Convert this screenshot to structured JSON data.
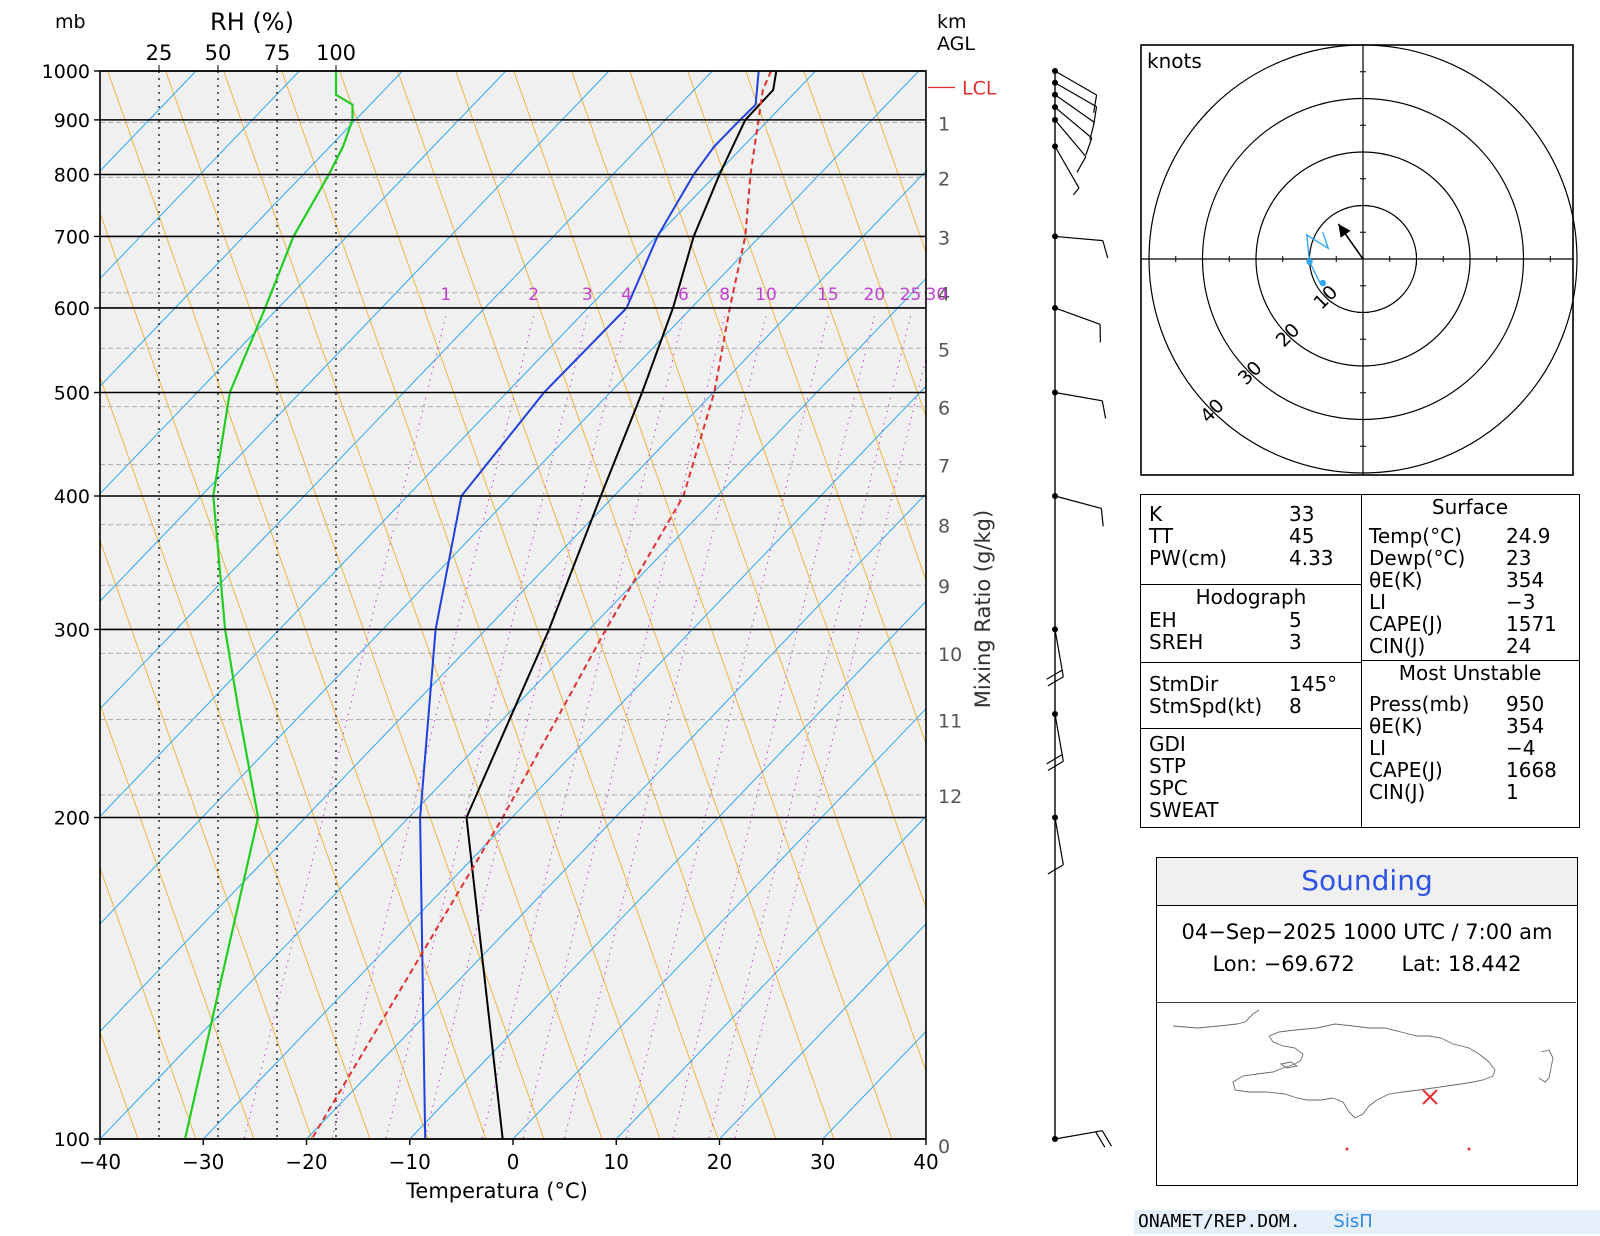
{
  "chart_data": {
    "type": "skew-t",
    "xlabel": "Temperatura (°C)",
    "left_unit": "mb",
    "rh_label": "RH (%)",
    "rh_ticks": [
      "25",
      "50",
      "75",
      "100"
    ],
    "right_unit_top": "km",
    "right_unit_bottom": "AGL",
    "mixing_ratio_label": "Mixing Ratio (g/kg)",
    "pressure_levels": [
      100,
      200,
      300,
      400,
      500,
      600,
      700,
      800,
      900,
      1000
    ],
    "pressure_labels": [
      "100",
      "200",
      "300",
      "400",
      "500",
      "600",
      "700",
      "800",
      "900",
      "1000"
    ],
    "temperature_ticks": [
      -40,
      -30,
      -20,
      -10,
      0,
      10,
      20,
      30,
      40
    ],
    "temperature_tick_labels": [
      "−40",
      "−30",
      "−20",
      "−10",
      "0",
      "10",
      "20",
      "30",
      "40"
    ],
    "xlim": [
      -40,
      40
    ],
    "ylim": [
      1000,
      100
    ],
    "height_km": [
      {
        "km": 0,
        "label": "0",
        "p": 1000
      },
      {
        "km": 1,
        "label": "1",
        "p": 895
      },
      {
        "km": 2,
        "label": "2",
        "p": 795
      },
      {
        "km": 3,
        "label": "3",
        "p": 700
      },
      {
        "km": 4,
        "label": "4",
        "p": 620
      },
      {
        "km": 5,
        "label": "5",
        "p": 550
      },
      {
        "km": 6,
        "label": "6",
        "p": 485
      },
      {
        "km": 7,
        "label": "7",
        "p": 428
      },
      {
        "km": 8,
        "label": "8",
        "p": 376
      },
      {
        "km": 9,
        "label": "9",
        "p": 330
      },
      {
        "km": 10,
        "label": "10",
        "p": 285
      },
      {
        "km": 11,
        "label": "11",
        "p": 247
      },
      {
        "km": 12,
        "label": "12",
        "p": 210
      }
    ],
    "lcl": {
      "label": "LCL",
      "p": 965
    },
    "mixing_ratio_lines": [
      {
        "label": "1",
        "x_at_600": -6.5
      },
      {
        "label": "2",
        "x_at_600": 2.0
      },
      {
        "label": "3",
        "x_at_600": 7.2
      },
      {
        "label": "4",
        "x_at_600": 11.0
      },
      {
        "label": "6",
        "x_at_600": 16.5
      },
      {
        "label": "8",
        "x_at_600": 20.5
      },
      {
        "label": "10",
        "x_at_600": 24.5
      },
      {
        "label": "15",
        "x_at_600": 30.5
      },
      {
        "label": "20",
        "x_at_600": 35.0
      },
      {
        "label": "25",
        "x_at_600": 38.5
      },
      {
        "label": "30",
        "x_at_600": 41.0
      }
    ],
    "series": [
      {
        "name": "Temperature",
        "color": "#000000",
        "points": [
          {
            "p": 1000,
            "x": 25.5
          },
          {
            "p": 960,
            "x": 25.2
          },
          {
            "p": 900,
            "x": 22.5
          },
          {
            "p": 800,
            "x": 20.0
          },
          {
            "p": 700,
            "x": 17.5
          },
          {
            "p": 600,
            "x": 15.5
          },
          {
            "p": 500,
            "x": 12.5
          },
          {
            "p": 400,
            "x": 8.5
          },
          {
            "p": 300,
            "x": 3.5
          },
          {
            "p": 200,
            "x": -4.5
          },
          {
            "p": 100,
            "x": -1.0
          }
        ]
      },
      {
        "name": "Dewpoint",
        "color": "#2040e0",
        "points": [
          {
            "p": 1000,
            "x": 23.8
          },
          {
            "p": 930,
            "x": 23.5
          },
          {
            "p": 900,
            "x": 22.0
          },
          {
            "p": 850,
            "x": 19.5
          },
          {
            "p": 800,
            "x": 17.5
          },
          {
            "p": 700,
            "x": 14.0
          },
          {
            "p": 600,
            "x": 11.0
          },
          {
            "p": 500,
            "x": 3.0
          },
          {
            "p": 400,
            "x": -5.0
          },
          {
            "p": 300,
            "x": -7.5
          },
          {
            "p": 200,
            "x": -9.0
          },
          {
            "p": 100,
            "x": -8.5
          }
        ]
      },
      {
        "name": "Parcel",
        "color": "#e03030",
        "dashed": true,
        "points": [
          {
            "p": 1000,
            "x": 25.0
          },
          {
            "p": 960,
            "x": 24.2
          },
          {
            "p": 800,
            "x": 23.0
          },
          {
            "p": 700,
            "x": 22.5
          },
          {
            "p": 600,
            "x": 21.0
          },
          {
            "p": 500,
            "x": 19.5
          },
          {
            "p": 400,
            "x": 16.5
          },
          {
            "p": 300,
            "x": 9.0
          },
          {
            "p": 200,
            "x": -1.0
          },
          {
            "p": 100,
            "x": -19.5
          }
        ]
      },
      {
        "name": "RH",
        "color": "#22cc22",
        "points": [
          {
            "p": 1000,
            "rh": 100
          },
          {
            "p": 950,
            "rh": 100
          },
          {
            "p": 930,
            "rh": 107
          },
          {
            "p": 900,
            "rh": 107
          },
          {
            "p": 850,
            "rh": 103
          },
          {
            "p": 800,
            "rh": 97
          },
          {
            "p": 700,
            "rh": 82
          },
          {
            "p": 600,
            "rh": 70
          },
          {
            "p": 500,
            "rh": 55
          },
          {
            "p": 400,
            "rh": 48
          },
          {
            "p": 300,
            "rh": 53
          },
          {
            "p": 250,
            "rh": 59
          },
          {
            "p": 200,
            "rh": 67
          },
          {
            "p": 100,
            "rh": 36
          }
        ]
      }
    ],
    "wind_profile": [
      {
        "p": 1000,
        "dir": 120,
        "spd": 10
      },
      {
        "p": 975,
        "dir": 120,
        "spd": 10
      },
      {
        "p": 950,
        "dir": 125,
        "spd": 10
      },
      {
        "p": 925,
        "dir": 130,
        "spd": 10
      },
      {
        "p": 900,
        "dir": 140,
        "spd": 10
      },
      {
        "p": 850,
        "dir": 150,
        "spd": 5
      },
      {
        "p": 700,
        "dir": 95,
        "spd": 10
      },
      {
        "p": 600,
        "dir": 110,
        "spd": 10
      },
      {
        "p": 500,
        "dir": 100,
        "spd": 10
      },
      {
        "p": 400,
        "dir": 105,
        "spd": 10
      },
      {
        "p": 300,
        "dir": 170,
        "spd": 20
      },
      {
        "p": 250,
        "dir": 170,
        "spd": 20
      },
      {
        "p": 200,
        "dir": 170,
        "spd": 10
      },
      {
        "p": 100,
        "dir": 80,
        "spd": 20
      }
    ]
  },
  "hodograph": {
    "unit": "knots",
    "rings": [
      10,
      20,
      30,
      40
    ],
    "ring_labels": [
      "10",
      "20",
      "30",
      "40"
    ],
    "storm_motion": {
      "dir": 145,
      "spd": 8
    },
    "trace": [
      {
        "u": -7.5,
        "v": 5.0
      },
      {
        "u": -6.5,
        "v": 2.0
      },
      {
        "u": -10.5,
        "v": 4.5
      },
      {
        "u": -10.0,
        "v": -0.5
      },
      {
        "u": -8.0,
        "v": -4.5
      },
      {
        "u": -7.5,
        "v": -5.0
      }
    ],
    "marker_points": [
      {
        "u": -10.0,
        "v": -0.5
      },
      {
        "u": -7.5,
        "v": -4.5
      }
    ]
  },
  "indices": {
    "general": [
      {
        "label": "K",
        "value": "33"
      },
      {
        "label": "TT",
        "value": "45"
      },
      {
        "label": "PW(cm)",
        "value": "4.33"
      }
    ],
    "hodograph_title": "Hodograph",
    "hodograph": [
      {
        "label": "EH",
        "value": "5"
      },
      {
        "label": "SREH",
        "value": "3"
      }
    ],
    "storm": [
      {
        "label": "StmDir",
        "value": "145°"
      },
      {
        "label": "StmSpd(kt)",
        "value": "8"
      }
    ],
    "other": [
      {
        "label": "GDI",
        "value": ""
      },
      {
        "label": "STP",
        "value": ""
      },
      {
        "label": "SPC",
        "value": ""
      },
      {
        "label": "SWEAT",
        "value": ""
      }
    ],
    "surface_title": "Surface",
    "surface": [
      {
        "label": "Temp(°C)",
        "value": "24.9"
      },
      {
        "label": "Dewp(°C)",
        "value": "23"
      },
      {
        "label": "θE(K)",
        "value": "354"
      },
      {
        "label": "LI",
        "value": "−3"
      },
      {
        "label": "CAPE(J)",
        "value": "1571"
      },
      {
        "label": "CIN(J)",
        "value": "24"
      }
    ],
    "mu_title": "Most Unstable",
    "most_unstable": [
      {
        "label": "Press(mb)",
        "value": "950"
      },
      {
        "label": "θE(K)",
        "value": "354"
      },
      {
        "label": "LI",
        "value": "−4"
      },
      {
        "label": "CAPE(J)",
        "value": "1668"
      },
      {
        "label": "CIN(J)",
        "value": "1"
      }
    ]
  },
  "sounding": {
    "title": "Sounding",
    "datetime": "04−Sep−2025 1000 UTC / 7:00 am",
    "lon": "Lon: −69.672",
    "lat": "Lat: 18.442"
  },
  "footer": {
    "org": "ONAMET/REP.DOM.",
    "brand": "SisΠ"
  },
  "colors": {
    "plot_bg": "#f0f0f0",
    "isotherm": "#30a8f0",
    "dry_adiabat": "#f0b030",
    "mixing_ratio": "#c040d0",
    "temperature": "#000000",
    "dewpoint": "#2040e0",
    "parcel": "#e03030",
    "rh": "#22cc22",
    "hodo_trace": "#30a8f0",
    "sounding_title": "#2f55e6",
    "station_marker": "#e03030"
  }
}
